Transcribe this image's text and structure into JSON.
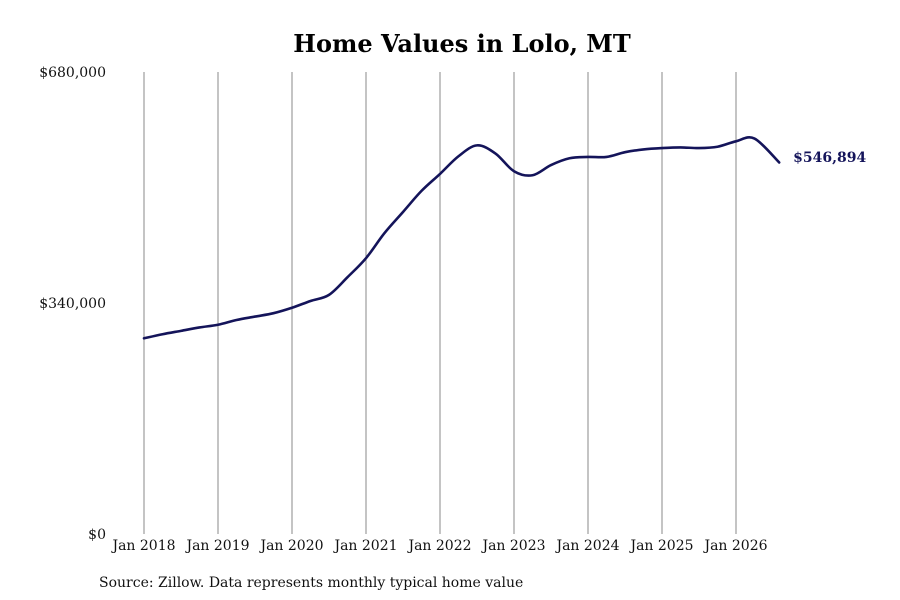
{
  "chart_data": {
    "type": "line",
    "title": "Home Values in Lolo, MT",
    "source": "Source: Zillow. Data represents monthly typical home value",
    "xlabel": "",
    "ylabel": "",
    "x_ticks": [
      "Jan 2018",
      "Jan 2019",
      "Jan 2020",
      "Jan 2021",
      "Jan 2022",
      "Jan 2023",
      "Jan 2024",
      "Jan 2025",
      "Jan 2026"
    ],
    "y_ticks": [
      "$0",
      "$340,000",
      "$680,000"
    ],
    "y_tick_values": [
      0,
      340000,
      680000
    ],
    "ylim": [
      0,
      680000
    ],
    "xlim": [
      "2018-01",
      "2026-08"
    ],
    "grid": "vertical",
    "line_color": "#14145a",
    "end_label": "$546,894",
    "series": [
      {
        "x": [
          "2018-01",
          "2018-04",
          "2018-07",
          "2018-10",
          "2019-01",
          "2019-04",
          "2019-07",
          "2019-10",
          "2020-01",
          "2020-04",
          "2020-07",
          "2020-10",
          "2021-01",
          "2021-04",
          "2021-07",
          "2021-10",
          "2022-01",
          "2022-04",
          "2022-07",
          "2022-10",
          "2023-01",
          "2023-04",
          "2023-07",
          "2023-10",
          "2024-01",
          "2024-04",
          "2024-07",
          "2024-10",
          "2025-01",
          "2025-04",
          "2025-07",
          "2025-10",
          "2026-01",
          "2026-04",
          "2026-08"
        ],
        "y": [
          288000,
          294000,
          299000,
          304000,
          308000,
          315000,
          320000,
          325000,
          333000,
          343000,
          352000,
          378000,
          406000,
          443000,
          474000,
          505000,
          530000,
          556000,
          572000,
          560000,
          534000,
          528000,
          543000,
          553000,
          555000,
          555000,
          562000,
          566000,
          568000,
          569000,
          568000,
          570000,
          578000,
          582000,
          546894
        ]
      }
    ]
  }
}
